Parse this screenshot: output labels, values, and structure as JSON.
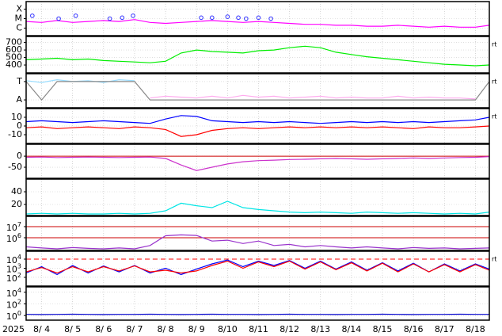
{
  "chart_data": {
    "type": "line",
    "year_label": "2025",
    "x": [
      3.5,
      4,
      4.5,
      5,
      5.5,
      6,
      6.5,
      7,
      7.5,
      8,
      8.5,
      9,
      9.5,
      10,
      10.5,
      11,
      11.5,
      12,
      12.5,
      13,
      13.5,
      14,
      14.5,
      15,
      15.5,
      16,
      16.5,
      17,
      17.5,
      18,
      18.45
    ],
    "xlim": [
      3.5,
      18.45
    ],
    "xticks": [
      {
        "value": 4,
        "label": "8/ 4"
      },
      {
        "value": 5,
        "label": "8/ 5"
      },
      {
        "value": 6,
        "label": "8/ 6"
      },
      {
        "value": 7,
        "label": "8/ 7"
      },
      {
        "value": 8,
        "label": "8/ 8"
      },
      {
        "value": 9,
        "label": "8/ 9"
      },
      {
        "value": 10,
        "label": "8/10"
      },
      {
        "value": 11,
        "label": "8/11"
      },
      {
        "value": 12,
        "label": "8/12"
      },
      {
        "value": 13,
        "label": "8/13"
      },
      {
        "value": 14,
        "label": "8/14"
      },
      {
        "value": 15,
        "label": "8/15"
      },
      {
        "value": 16,
        "label": "8/16"
      },
      {
        "value": 17,
        "label": "8/17"
      },
      {
        "value": 18,
        "label": "8/18"
      }
    ],
    "grid": true,
    "panels": [
      {
        "ylim": [
          -6.8,
          -3.2
        ],
        "yticks": [
          {
            "value": -4,
            "label": "X"
          },
          {
            "value": -5,
            "label": "M"
          },
          {
            "value": -6,
            "label": "C"
          }
        ],
        "series": [
          {
            "kind": "line",
            "color": "#ff00ff",
            "values": [
              -5.3,
              -5.4,
              -5.2,
              -5.4,
              -5.3,
              -5.2,
              -5.3,
              -5.1,
              -5.4,
              -5.5,
              -5.4,
              -5.3,
              -5.2,
              -5.3,
              -5.4,
              -5.3,
              -5.4,
              -5.5,
              -5.6,
              -5.6,
              -5.7,
              -5.7,
              -5.8,
              -5.8,
              -5.7,
              -5.8,
              -5.9,
              -5.8,
              -5.9,
              -5.9,
              -5.7
            ]
          },
          {
            "kind": "marker",
            "color": "#3333ff",
            "x": [
              3.7,
              4.55,
              5.1,
              6.2,
              6.6,
              6.95,
              9.15,
              9.5,
              10.0,
              10.35,
              10.6,
              11.0,
              11.4
            ],
            "values": [
              -4.7,
              -5.0,
              -4.7,
              -5.0,
              -4.9,
              -4.7,
              -4.9,
              -4.9,
              -4.8,
              -4.9,
              -5.0,
              -4.9,
              -5.0
            ]
          }
        ]
      },
      {
        "ylim": [
          295,
          780
        ],
        "yticks": [
          400,
          500,
          600,
          700
        ],
        "flag": "rt",
        "series": [
          {
            "kind": "line",
            "color": "#00ee00",
            "values": [
              470,
              480,
              490,
              470,
              480,
              460,
              450,
              440,
              430,
              450,
              560,
              600,
              580,
              570,
              560,
              590,
              600,
              630,
              650,
              630,
              570,
              540,
              510,
              490,
              470,
              450,
              430,
              410,
              400,
              390,
              400
            ]
          }
        ]
      },
      {
        "ylim": [
          -0.43,
          1.43
        ],
        "yticks": [
          {
            "value": 1,
            "label": "T"
          },
          {
            "value": 0,
            "label": "A"
          }
        ],
        "flag": "rt",
        "series": [
          {
            "kind": "line",
            "color": "#99ddff",
            "values": [
              1.05,
              0.95,
              1.1,
              1,
              1.05,
              0.95,
              1.1,
              1.05,
              null,
              null,
              null,
              null,
              null,
              null,
              null,
              null,
              null,
              null,
              null,
              null,
              null,
              null,
              null,
              null,
              null,
              null,
              null,
              null,
              null,
              null,
              1.05
            ]
          },
          {
            "kind": "line",
            "color": "#ffaaee",
            "values": [
              null,
              null,
              null,
              null,
              null,
              null,
              null,
              null,
              0.1,
              0.2,
              0.15,
              0.1,
              0.2,
              0.1,
              0.25,
              0.15,
              0.2,
              0.1,
              0.15,
              0.2,
              0.1,
              0.15,
              0.1,
              0.1,
              0.2,
              0.1,
              0.15,
              0.1,
              0.1,
              0.05,
              null
            ]
          },
          {
            "kind": "line",
            "color": "#888888",
            "values": [
              1,
              0,
              1,
              1,
              1,
              1,
              1,
              1,
              0,
              0,
              0,
              0,
              0,
              0,
              0,
              0,
              0,
              0,
              0,
              0,
              0,
              0,
              0,
              0,
              0,
              0,
              0,
              0,
              0,
              0,
              1
            ]
          }
        ]
      },
      {
        "ylim": [
          -20,
          20
        ],
        "yticks": [
          10,
          0,
          -10
        ],
        "flag": "rt",
        "series": [
          {
            "kind": "line",
            "color": "#0000ff",
            "values": [
              5,
              6,
              5,
              4,
              5,
              6,
              5,
              4,
              3,
              8,
              12,
              11,
              6,
              5,
              4,
              5,
              4,
              5,
              4,
              3,
              4,
              5,
              4,
              5,
              4,
              5,
              4,
              5,
              6,
              7,
              10
            ]
          },
          {
            "kind": "line",
            "color": "#ff0000",
            "values": [
              -2,
              -1,
              -3,
              -2,
              -1,
              -2,
              -3,
              -1,
              -2,
              -4,
              -12,
              -10,
              -5,
              -3,
              -2,
              -3,
              -2,
              -1,
              -2,
              -1,
              -2,
              -1,
              -2,
              -1,
              -2,
              -3,
              -1,
              -2,
              -2,
              -1,
              0
            ]
          }
        ]
      },
      {
        "ylim": [
          -100,
          54
        ],
        "yticks": [
          0,
          -50
        ],
        "reference_lines": [
          0
        ],
        "reference_color": "#cc0000",
        "series": [
          {
            "kind": "line",
            "color": "#cc33cc",
            "values": [
              -5,
              -4,
              -6,
              -5,
              -4,
              -5,
              -6,
              -5,
              -4,
              -10,
              -40,
              -65,
              -50,
              -35,
              -25,
              -20,
              -18,
              -15,
              -14,
              -12,
              -10,
              -12,
              -14,
              -12,
              -10,
              -8,
              -10,
              -8,
              -6,
              -5,
              -2
            ]
          }
        ]
      },
      {
        "ylim": [
          2.5,
          60
        ],
        "yticks": [
          40,
          20
        ],
        "series": [
          {
            "kind": "line",
            "color": "#00e5e5",
            "values": [
              5,
              6,
              5,
              6,
              5,
              5,
              6,
              5,
              6,
              10,
              22,
              18,
              15,
              25,
              15,
              12,
              10,
              8,
              7,
              8,
              7,
              6,
              8,
              7,
              6,
              7,
              6,
              5,
              6,
              5,
              8
            ]
          }
        ]
      },
      {
        "log": true,
        "ylim": [
          72000,
          85000000
        ],
        "yticks": [
          {
            "value": 10000000,
            "label": "10",
            "exponent": "7"
          },
          {
            "value": 1000000,
            "label": "10",
            "exponent": "6"
          }
        ],
        "reference_lines": [
          10000000,
          1000000
        ],
        "reference_color": "#cc0000",
        "series": [
          {
            "kind": "line",
            "color": "#9933cc",
            "values": [
              150000,
              120000,
              100000,
              130000,
              110000,
              100000,
              120000,
              100000,
              200000,
              1500000,
              1800000,
              1600000,
              500000,
              600000,
              300000,
              500000,
              200000,
              250000,
              150000,
              200000,
              150000,
              120000,
              150000,
              120000,
              100000,
              130000,
              110000,
              120000,
              100000,
              110000,
              120000
            ]
          }
        ]
      },
      {
        "log": true,
        "ylim": [
          11,
          74000
        ],
        "yticks": [
          {
            "value": 10000,
            "label": "10",
            "exponent": "4"
          },
          {
            "value": 1000,
            "label": "10",
            "exponent": "3"
          },
          {
            "value": 100,
            "label": "10",
            "exponent": "2"
          }
        ],
        "reference_lines": [
          10000
        ],
        "reference_color": "#ff0000",
        "reference_dashed": true,
        "flag": "rt",
        "series": [
          {
            "kind": "line",
            "color": "#0000ff",
            "values": [
              300,
              1500,
              200,
              2000,
              300,
              1800,
              400,
              2000,
              300,
              1000,
              200,
              800,
              3000,
              8000,
              1500,
              6000,
              2000,
              7000,
              1000,
              6000,
              800,
              5000,
              600,
              4000,
              500,
              3500,
              400,
              3000,
              500,
              3000,
              800
            ]
          },
          {
            "kind": "line",
            "color": "#ff0000",
            "values": [
              400,
              1200,
              300,
              1500,
              400,
              1500,
              500,
              1800,
              400,
              600,
              300,
              500,
              2000,
              6000,
              1000,
              5000,
              1500,
              6000,
              800,
              5000,
              700,
              4000,
              500,
              3500,
              400,
              3000,
              400,
              2500,
              400,
              2500,
              600
            ]
          }
        ]
      },
      {
        "log": true,
        "ylim": [
          0.16,
          85000
        ],
        "yticks": [
          {
            "value": 10000,
            "label": "10",
            "exponent": "4"
          },
          {
            "value": 100,
            "label": "10",
            "exponent": "2"
          },
          {
            "value": 1,
            "label": "10",
            "exponent": "0"
          }
        ],
        "series": [
          {
            "kind": "line",
            "color": "#0000cc",
            "values": [
              1.6,
              1.5,
              1.6,
              1.7,
              1.6,
              1.5,
              1.6,
              1.6,
              1.7,
              1.6,
              1.5,
              1.6,
              1.7,
              1.6,
              1.6,
              1.5,
              1.6,
              1.7,
              1.6,
              1.6,
              1.5,
              1.6,
              1.6,
              1.7,
              1.6,
              1.5,
              1.6,
              1.6,
              1.7,
              1.6,
              1.6
            ]
          }
        ]
      }
    ]
  }
}
